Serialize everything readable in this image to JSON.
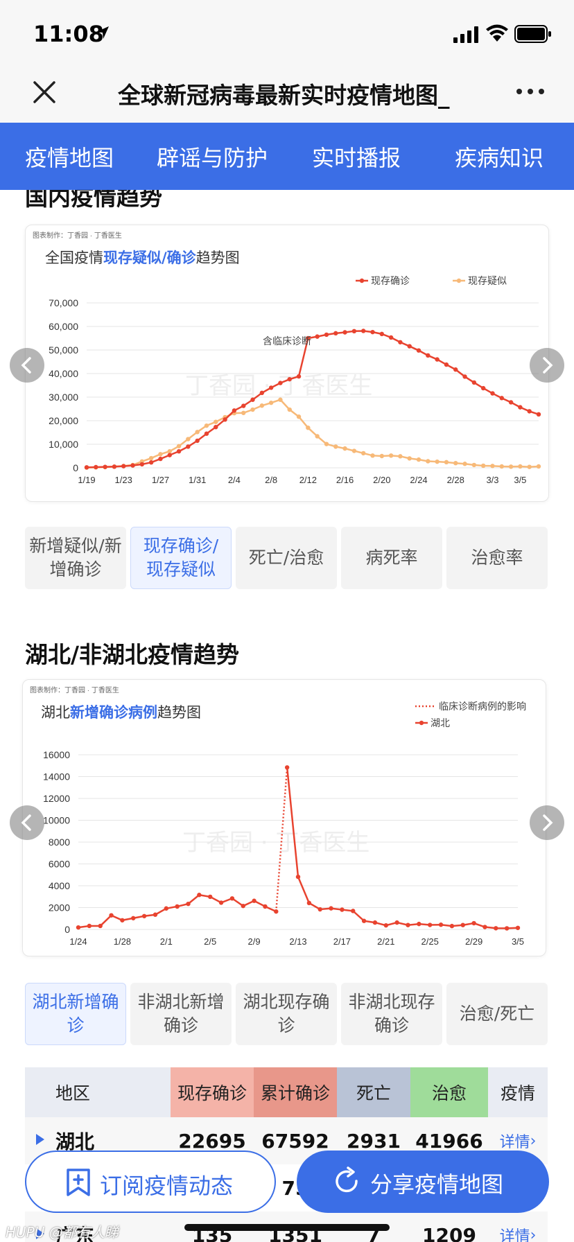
{
  "status_bar": {
    "time": "11:08"
  },
  "title_bar": {
    "title": "全球新冠病毒最新实时疫情地图_"
  },
  "nav": {
    "tabs": [
      "疫情地图",
      "辟谣与防护",
      "实时播报",
      "疾病知识"
    ]
  },
  "section1": {
    "title": "国内疫情趋势",
    "chart_credit": "图表制作：丁香园 · 丁香医生",
    "chart_title_prefix": "全国疫情",
    "chart_title_highlight": "现存疑似/确诊",
    "chart_title_suffix": "趋势图",
    "annotation": "含临床诊断",
    "watermark": "丁香园 · 丁香医生",
    "buttons": [
      "新增疑似/新增确诊",
      "现存确诊/现存疑似",
      "死亡/治愈",
      "病死率",
      "治愈率"
    ]
  },
  "section2": {
    "title": "湖北/非湖北疫情趋势",
    "chart_credit": "图表制作：丁香园 · 丁香医生",
    "chart_title_prefix": "湖北",
    "chart_title_highlight": "新增确诊病例",
    "chart_title_suffix": "趋势图",
    "watermark": "丁香园 · 丁香医生",
    "buttons": [
      "湖北新增确诊",
      "非湖北新增确诊",
      "湖北现存确诊",
      "非湖北现存确诊",
      "治愈/死亡"
    ]
  },
  "table": {
    "headers": [
      "地区",
      "现存确诊",
      "累计确诊",
      "死亡",
      "治愈",
      "疫情"
    ],
    "header_colors": [
      "#e9ecf3",
      "#f4b3a8",
      "#e8978a",
      "#b9c3d6",
      "#9fdc9a",
      "#e9ecf3"
    ],
    "rows": [
      {
        "region": "湖北",
        "current": "22695",
        "total": "67592",
        "deaths": "2931",
        "cured": "41966",
        "detail": "详情"
      },
      {
        "region": "",
        "current": "",
        "total": "75",
        "deaths": "",
        "cured": "",
        "detail": ""
      },
      {
        "region": "广东",
        "current": "135",
        "total": "1351",
        "deaths": "7",
        "cured": "1209",
        "detail": "详情"
      }
    ]
  },
  "bottom_buttons": {
    "subscribe": "订阅疫情动态",
    "share": "分享疫情地图"
  },
  "watermark_text": "HUPU @都有人睇",
  "colors": {
    "accent": "#3b6ee6",
    "confirmed_line": "#e8432f",
    "suspected_line": "#f7b978"
  },
  "chart_data": [
    {
      "type": "line",
      "title": "全国疫情现存疑似/确诊趋势图",
      "xlabel": "",
      "ylabel": "",
      "ylim": [
        0,
        70000
      ],
      "yticks": [
        0,
        10000,
        20000,
        30000,
        40000,
        50000,
        60000,
        70000
      ],
      "ytick_labels": [
        "0",
        "10,000",
        "20,000",
        "30,000",
        "40,000",
        "50,000",
        "60,000",
        "70,000"
      ],
      "x_tick_labels": [
        "1/19",
        "1/23",
        "1/27",
        "1/31",
        "2/4",
        "2/8",
        "2/12",
        "2/16",
        "2/20",
        "2/24",
        "2/28",
        "3/3",
        "3/5"
      ],
      "grid": true,
      "legend": "top-right",
      "series": [
        {
          "name": "现存确诊",
          "color": "#e8432f",
          "values": [
            200,
            300,
            400,
            500,
            700,
            1000,
            1500,
            2300,
            3800,
            5400,
            7000,
            9000,
            11500,
            14500,
            17300,
            20500,
            24300,
            26300,
            28900,
            31800,
            34000,
            36000,
            37600,
            38800,
            55000,
            55700,
            56500,
            57100,
            57500,
            58000,
            58100,
            57600,
            56800,
            55300,
            53300,
            51600,
            49800,
            47700,
            46000,
            43800,
            41700,
            38700,
            36200,
            33800,
            31600,
            29600,
            27800,
            25700,
            24000,
            22700
          ]
        },
        {
          "name": "现存疑似",
          "color": "#f7b978",
          "values": [
            100,
            200,
            300,
            500,
            800,
            1200,
            2700,
            4100,
            5800,
            7000,
            9200,
            12200,
            15200,
            17900,
            19500,
            21500,
            23200,
            23300,
            24700,
            26400,
            27600,
            28900,
            24700,
            21700,
            17000,
            13400,
            10100,
            9000,
            8200,
            7200,
            6200,
            5200,
            5000,
            5200,
            4900,
            4000,
            3500,
            2800,
            2600,
            2400,
            2000,
            1700,
            1200,
            900,
            800,
            600,
            500,
            600,
            400,
            600
          ]
        }
      ]
    },
    {
      "type": "line",
      "title": "湖北新增确诊病例趋势图",
      "xlabel": "",
      "ylabel": "",
      "ylim": [
        0,
        16000
      ],
      "yticks": [
        0,
        2000,
        4000,
        6000,
        8000,
        10000,
        12000,
        14000,
        16000
      ],
      "x_tick_labels": [
        "1/24",
        "1/28",
        "2/1",
        "2/5",
        "2/9",
        "2/13",
        "2/17",
        "2/21",
        "2/25",
        "2/29",
        "3/5"
      ],
      "grid": true,
      "legend": "top-right",
      "series": [
        {
          "name": "湖北",
          "color": "#e8432f",
          "values": [
            180,
            320,
            320,
            1290,
            840,
            1030,
            1220,
            1350,
            1920,
            2100,
            2340,
            3160,
            2990,
            2450,
            2840,
            2150,
            2620,
            2100,
            1640,
            14840,
            4820,
            2420,
            1840,
            1930,
            1810,
            1690,
            780,
            630,
            370,
            630,
            400,
            500,
            410,
            430,
            310,
            400,
            570,
            220,
            110,
            100,
            140
          ]
        },
        {
          "name": "临床诊断病例的影响",
          "color": "#e8432f",
          "style": "dotted"
        }
      ]
    }
  ]
}
